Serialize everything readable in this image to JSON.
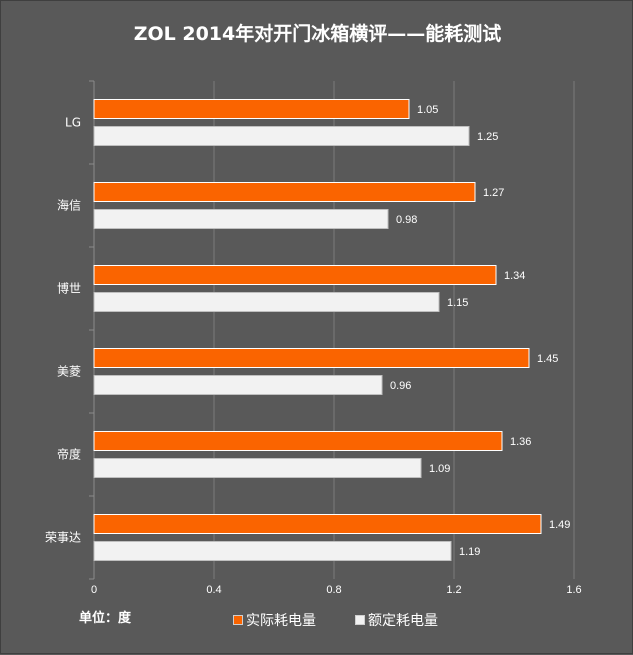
{
  "chart_data": {
    "type": "bar",
    "orientation": "horizontal",
    "title": "ZOL 2014年对开门冰箱横评——能耗测试",
    "unit_label": "单位：度",
    "categories": [
      "LG",
      "海信",
      "博世",
      "美菱",
      "帝度",
      "荣事达"
    ],
    "series": [
      {
        "name": "实际耗电量",
        "color": "#fa6400",
        "values": [
          1.05,
          1.27,
          1.34,
          1.45,
          1.36,
          1.49
        ]
      },
      {
        "name": "额定耗电量",
        "color": "#f2f2f2",
        "values": [
          1.25,
          0.98,
          1.15,
          0.96,
          1.09,
          1.19
        ]
      }
    ],
    "value_labels": [
      [
        "1.05",
        "1.27",
        "1.34",
        "1.45",
        "1.36",
        "1.49"
      ],
      [
        "1.25",
        "0.98",
        "1.15",
        "0.96",
        "1.09",
        "1.19"
      ]
    ],
    "xlim": [
      0,
      1.6
    ],
    "x_ticks": [
      "0",
      "0.4",
      "0.8",
      "1.2",
      "1.6"
    ],
    "x_tick_values": [
      0,
      0.4,
      0.8,
      1.2,
      1.6
    ],
    "grid": true,
    "legend_position": "bottom"
  }
}
